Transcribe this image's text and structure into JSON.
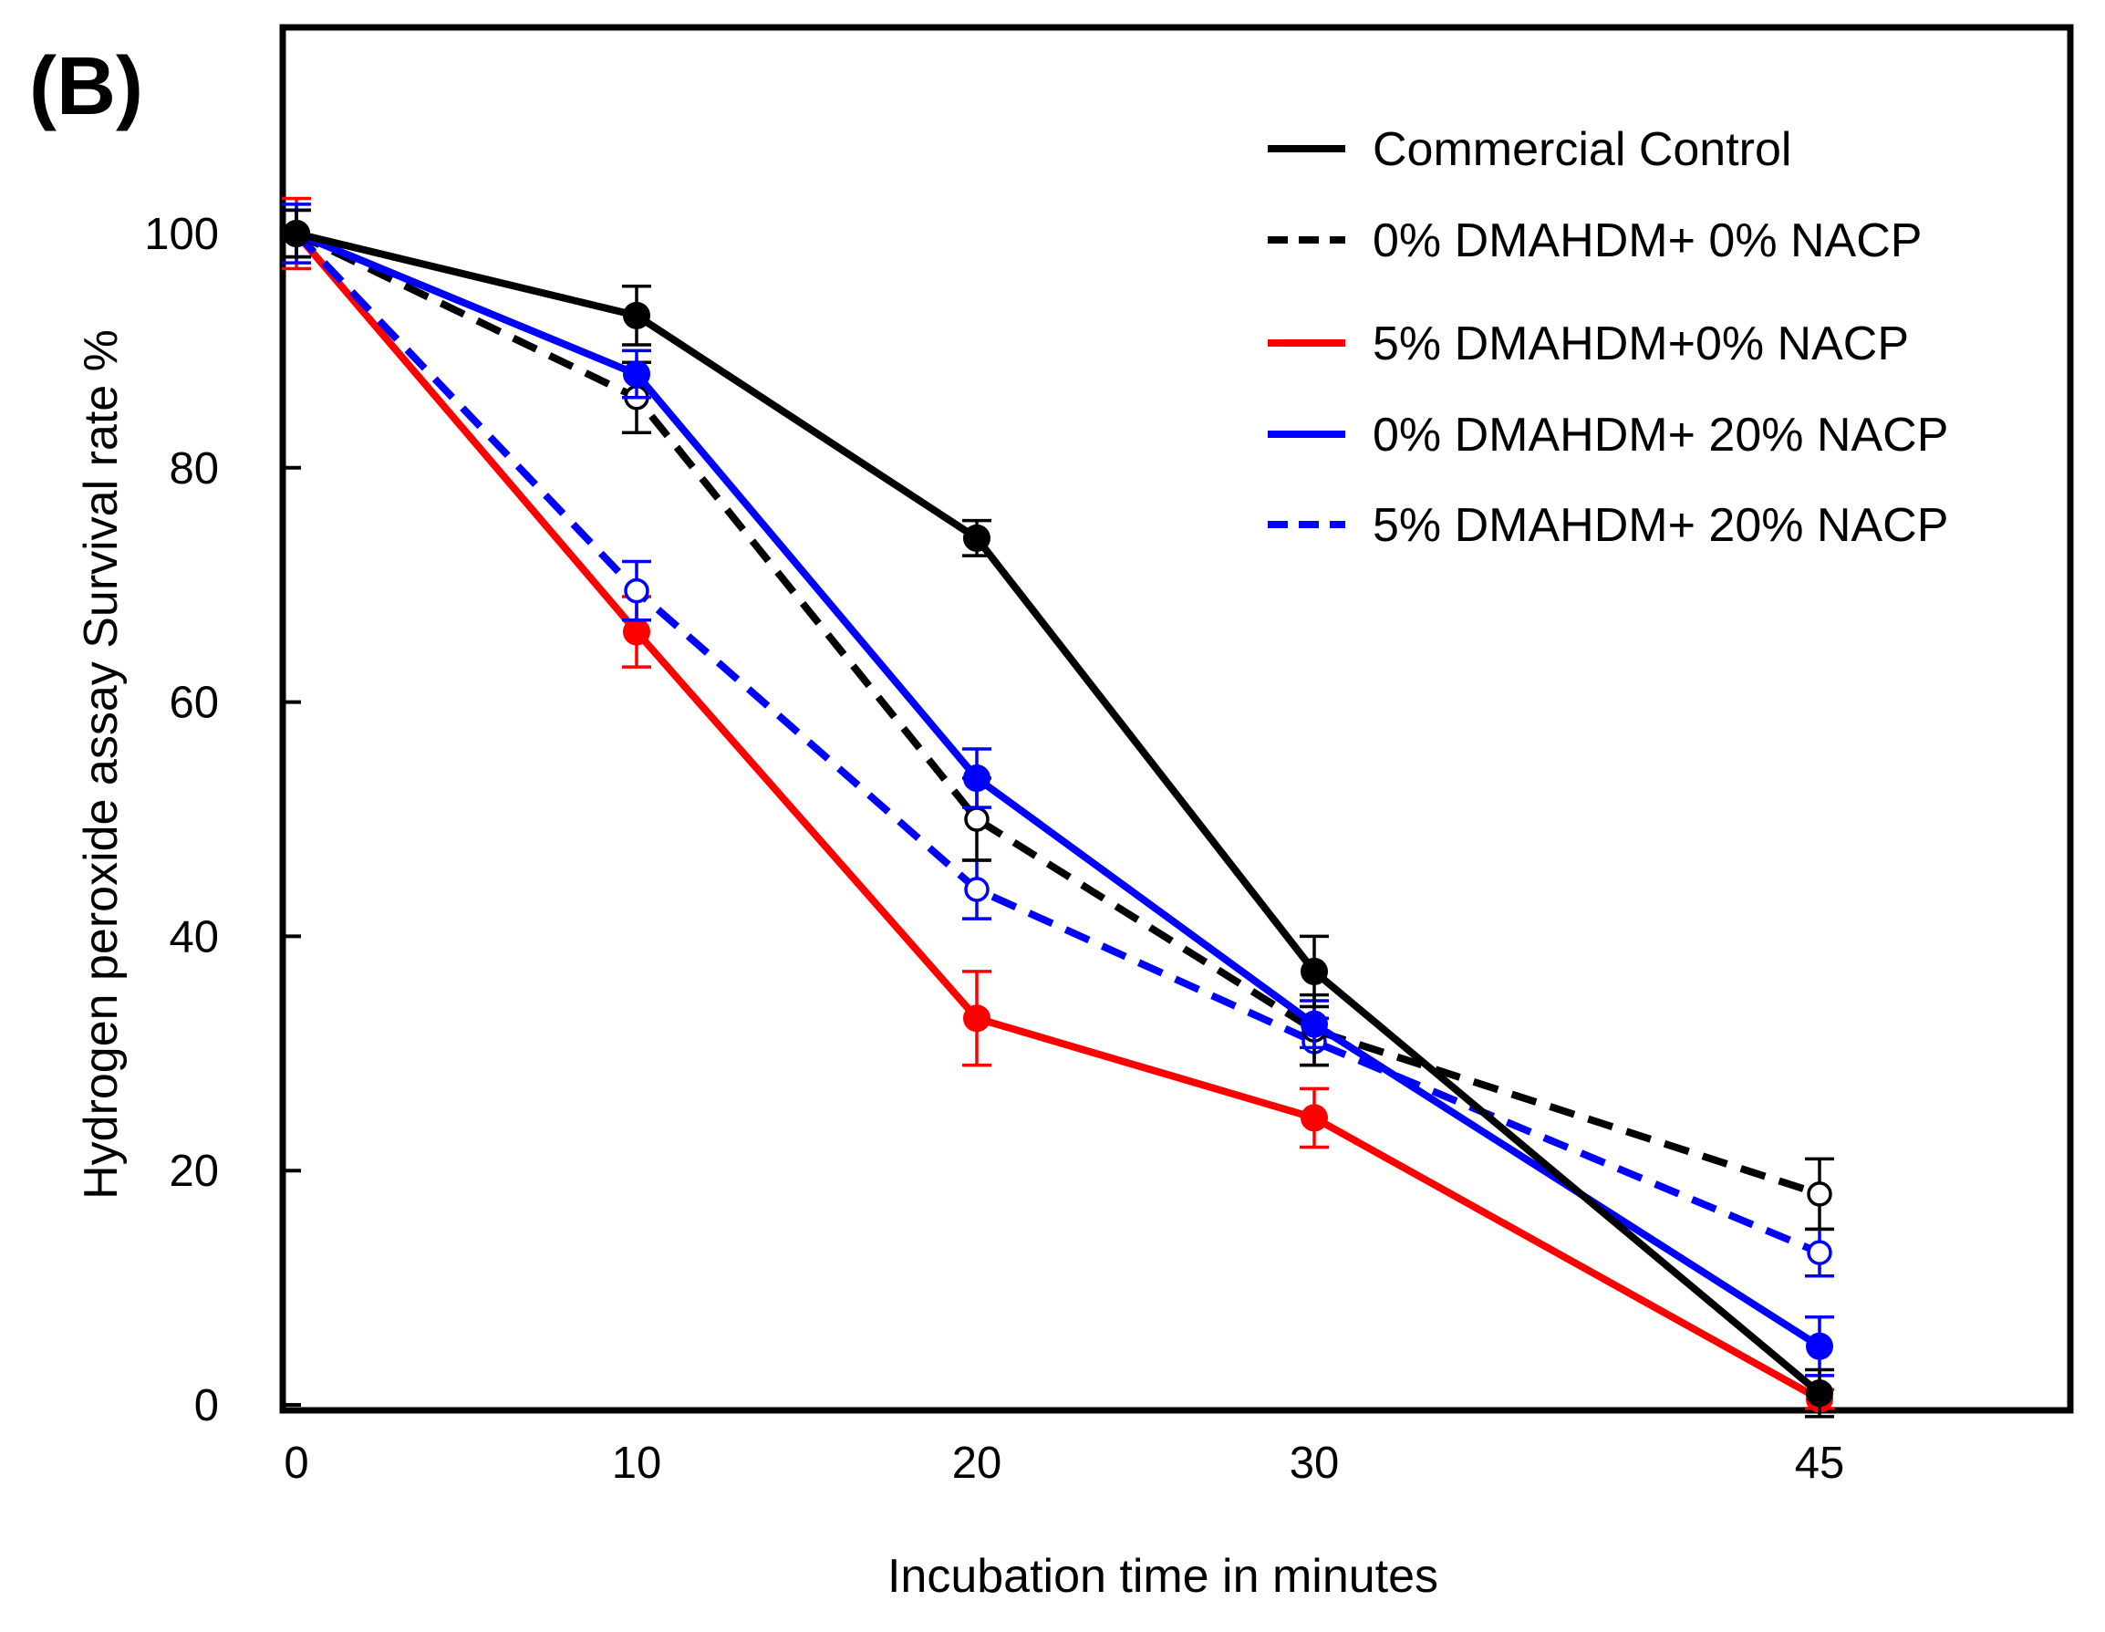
{
  "panel_label": "(B)",
  "chart_data": {
    "type": "line",
    "title": "",
    "xlabel": "Incubation time in minutes",
    "ylabel": "Hydrogen peroxide assay Survival rate %",
    "x": [
      0,
      10,
      20,
      30,
      45
    ],
    "x_tick_labels": [
      "0",
      "10",
      "20",
      "30",
      "45"
    ],
    "y_ticks": [
      0,
      20,
      40,
      60,
      80,
      100
    ],
    "y_tick_labels": [
      "0",
      "20",
      "40",
      "60",
      "80",
      "100"
    ],
    "ylim": [
      0,
      118
    ],
    "grid": false,
    "legend_position": "top-right",
    "series": [
      {
        "name": "Commercial Control",
        "color": "#000000",
        "line_style": "solid",
        "marker": "filled-circle",
        "values": [
          100,
          93,
          74,
          37,
          1
        ],
        "errors": [
          2,
          2.5,
          1.5,
          3,
          2
        ]
      },
      {
        "name": "0% DMAHDM+ 0% NACP",
        "color": "#000000",
        "line_style": "dashed",
        "marker": "open-circle",
        "values": [
          100,
          86,
          50,
          32,
          18
        ],
        "errors": [
          2,
          3,
          3.5,
          3,
          3
        ]
      },
      {
        "name": "5% DMAHDM+0% NACP",
        "color": "#ff0000",
        "line_style": "solid",
        "marker": "filled-circle",
        "values": [
          100,
          66,
          33,
          24.5,
          0.5
        ],
        "errors": [
          3,
          3,
          4,
          2.5,
          0.8
        ]
      },
      {
        "name": "0% DMAHDM+ 20% NACP",
        "color": "#0000ff",
        "line_style": "solid",
        "marker": "filled-circle",
        "values": [
          100,
          88,
          53.5,
          32.5,
          5
        ],
        "errors": [
          2,
          2,
          2.5,
          2,
          2.5
        ]
      },
      {
        "name": "5% DMAHDM+ 20% NACP",
        "color": "#0000ff",
        "line_style": "dashed",
        "marker": "open-circle",
        "values": [
          100,
          69.5,
          44,
          31,
          13
        ],
        "errors": [
          2.5,
          2.5,
          2.5,
          2,
          2
        ]
      }
    ]
  }
}
